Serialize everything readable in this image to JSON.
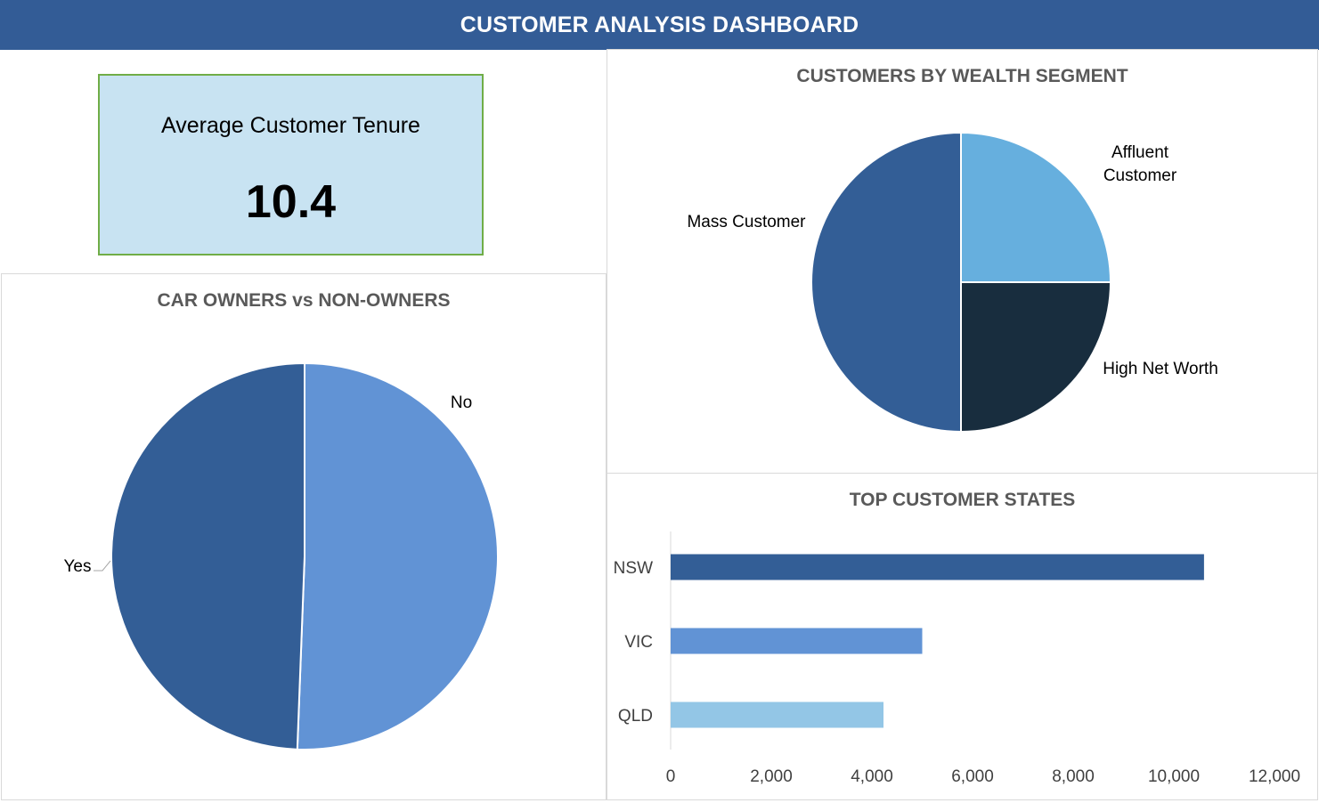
{
  "header": {
    "title": "CUSTOMER ANALYSIS DASHBOARD"
  },
  "kpi": {
    "label": "Average Customer Tenure",
    "value": "10.4"
  },
  "colors": {
    "header": "#335c96",
    "kpi_background": "#c8e3f2",
    "kpi_border": "#70ad47",
    "title_text": "#595959"
  },
  "chart_data": [
    {
      "type": "pie",
      "title": "CAR OWNERS vs NON-OWNERS",
      "categories": [
        "No",
        "Yes"
      ],
      "values": [
        50.6,
        49.4
      ],
      "colors": [
        "#6193d5",
        "#335e96"
      ],
      "legend": "none"
    },
    {
      "type": "pie",
      "title": "CUSTOMERS BY WEALTH SEGMENT",
      "categories": [
        "Affluent Customer",
        "High Net Worth",
        "Mass Customer"
      ],
      "values": [
        25,
        25,
        50
      ],
      "colors": [
        "#66afde",
        "#182d3e",
        "#335e96"
      ],
      "legend": "none"
    },
    {
      "type": "bar",
      "orientation": "horizontal",
      "title": "TOP CUSTOMER STATES",
      "categories": [
        "NSW",
        "VIC",
        "QLD"
      ],
      "values": [
        10600,
        5000,
        4230
      ],
      "colors": [
        "#335e96",
        "#6193d5",
        "#93c6e6"
      ],
      "xlim": [
        0,
        12000
      ],
      "xticks": [
        "0",
        "2,000",
        "4,000",
        "6,000",
        "8,000",
        "10,000",
        "12,000"
      ],
      "grid": false,
      "legend": "none"
    }
  ]
}
